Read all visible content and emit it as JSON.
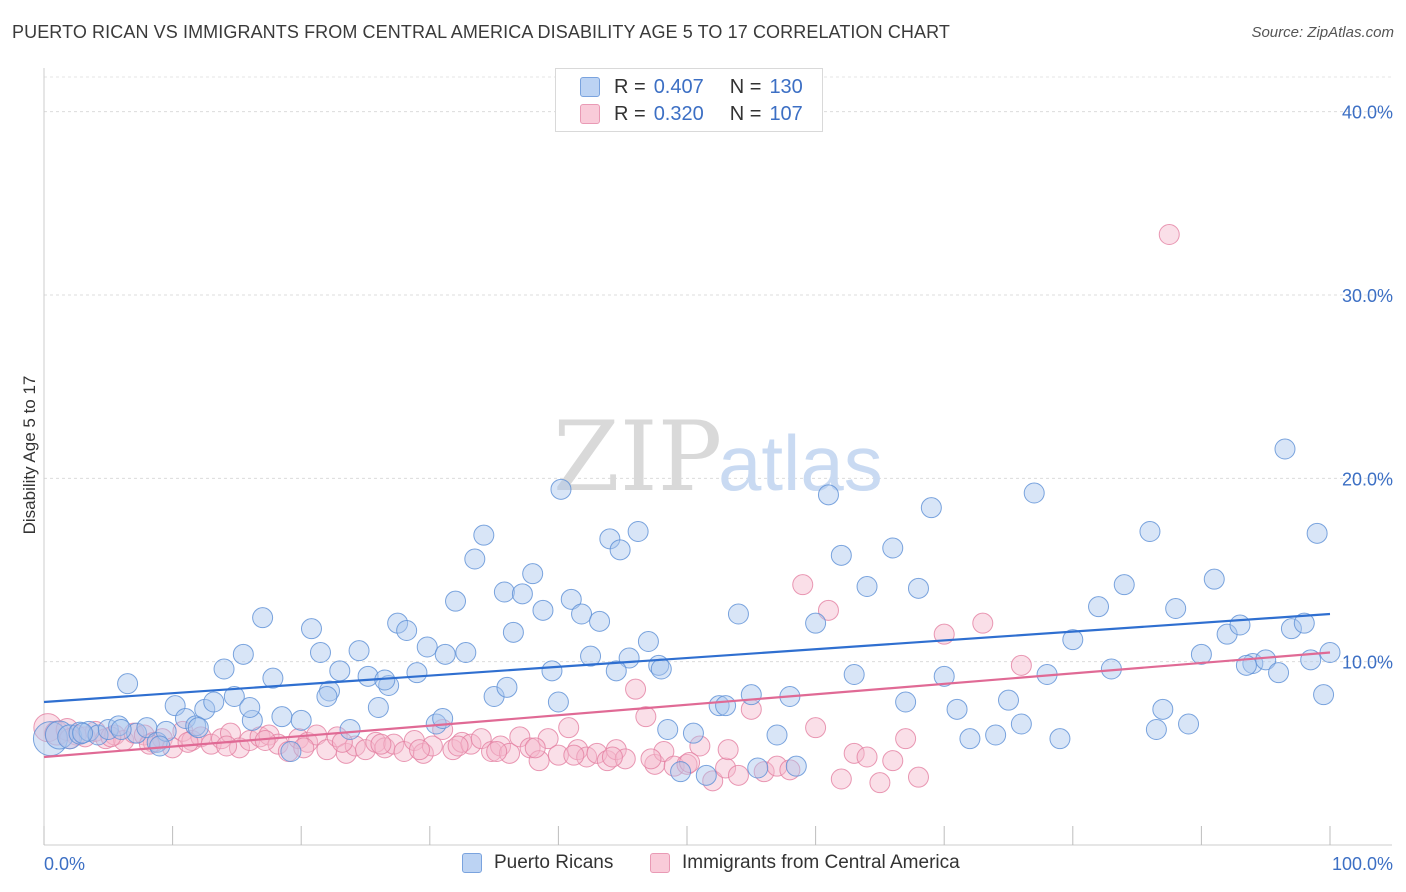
{
  "header": {
    "title": "PUERTO RICAN VS IMMIGRANTS FROM CENTRAL AMERICA DISABILITY AGE 5 TO 17 CORRELATION CHART",
    "source": "Source: ZipAtlas.com"
  },
  "watermark": {
    "zip": "ZIP",
    "atlas": "atlas"
  },
  "legend_top": {
    "rows": [
      {
        "r_label": "R =",
        "r_value": "0.407",
        "n_label": "N =",
        "n_value": "130"
      },
      {
        "r_label": "R =",
        "r_value": "0.320",
        "n_label": "N =",
        "n_value": "107"
      }
    ]
  },
  "chart_data": {
    "type": "scatter",
    "title": "PUERTO RICAN VS IMMIGRANTS FROM CENTRAL AMERICA DISABILITY AGE 5 TO 17 CORRELATION CHART",
    "xlabel": "",
    "ylabel": "Disability Age 5 to 17",
    "xlim": [
      0,
      100
    ],
    "ylim": [
      0,
      42
    ],
    "x_tick_labels": [
      "0.0%",
      "100.0%"
    ],
    "y_ticks": [
      10,
      20,
      30,
      40
    ],
    "y_tick_labels": [
      "10.0%",
      "20.0%",
      "30.0%",
      "40.0%"
    ],
    "grid": "horizontal dashed",
    "legend_position": "bottom-center",
    "colors": {
      "blue": "#5b8fd6",
      "blue_fill": "#a9c6ee",
      "pink": "#e47fa1",
      "pink_fill": "#f5b9cc",
      "blue_line": "#2f6fd0",
      "pink_line": "#e06a95",
      "tick_text": "#3c6fc4"
    },
    "series": [
      {
        "name": "Puerto Ricans",
        "color": "#5b8fd6",
        "trend": {
          "x": [
            0,
            100
          ],
          "y": [
            7.8,
            12.6
          ]
        },
        "x": [
          0.5,
          1.2,
          2.0,
          2.8,
          3.5,
          4.2,
          5.0,
          5.8,
          6.5,
          7.2,
          8.0,
          8.8,
          9.5,
          10.2,
          11.0,
          11.8,
          12.5,
          13.2,
          14.0,
          14.8,
          15.5,
          16.2,
          17.0,
          17.8,
          18.5,
          19.2,
          20.0,
          20.8,
          21.5,
          22.2,
          23.0,
          23.8,
          24.5,
          25.2,
          26.0,
          26.8,
          27.5,
          28.2,
          29.0,
          29.8,
          30.5,
          31.2,
          32.0,
          32.8,
          33.5,
          34.2,
          35.0,
          35.8,
          36.5,
          37.2,
          38.0,
          38.8,
          39.5,
          40.2,
          41.0,
          41.8,
          42.5,
          43.2,
          44.0,
          44.8,
          45.5,
          46.2,
          47.0,
          47.8,
          48.5,
          49.5,
          50.5,
          51.5,
          52.5,
          54.0,
          55.5,
          57.0,
          58.5,
          60.0,
          62.0,
          64.0,
          66.0,
          68.0,
          70.0,
          72.0,
          74.0,
          76.0,
          78.0,
          80.0,
          82.0,
          84.0,
          86.0,
          88.0,
          90.0,
          91.0,
          92.0,
          93.0,
          94.0,
          95.0,
          96.0,
          97.0,
          98.0,
          99.0,
          99.5,
          100.0,
          3.0,
          6.0,
          9.0,
          12.0,
          16.0,
          22.0,
          26.5,
          31.0,
          36.0,
          40.0,
          44.5,
          48.0,
          53.0,
          58.0,
          63.0,
          67.0,
          71.0,
          75.0,
          79.0,
          83.0,
          87.0,
          89.0,
          93.5,
          96.5,
          98.5,
          86.5,
          77.0,
          69.0,
          61.0,
          55.0
        ],
        "y": [
          5.8,
          6.0,
          5.9,
          6.1,
          6.2,
          6.0,
          6.3,
          6.5,
          8.8,
          6.1,
          6.4,
          5.6,
          6.2,
          7.6,
          6.9,
          6.5,
          7.4,
          7.8,
          9.6,
          8.1,
          10.4,
          6.8,
          12.4,
          9.1,
          7.0,
          5.1,
          6.8,
          11.8,
          10.5,
          8.4,
          9.5,
          6.3,
          10.6,
          9.2,
          7.5,
          8.7,
          12.1,
          11.7,
          9.4,
          10.8,
          6.6,
          10.4,
          13.3,
          10.5,
          15.6,
          16.9,
          8.1,
          13.8,
          11.6,
          13.7,
          14.8,
          12.8,
          9.5,
          19.4,
          13.4,
          12.6,
          10.3,
          12.2,
          16.7,
          16.1,
          10.2,
          17.1,
          11.1,
          9.8,
          6.3,
          4.0,
          6.1,
          3.8,
          7.6,
          12.6,
          4.2,
          6.0,
          4.3,
          12.1,
          15.8,
          14.1,
          16.2,
          14.0,
          9.2,
          5.8,
          6.0,
          6.6,
          9.3,
          11.2,
          13.0,
          14.2,
          17.1,
          12.9,
          10.4,
          14.5,
          11.5,
          12.0,
          9.9,
          10.1,
          9.4,
          11.8,
          12.1,
          17.0,
          8.2,
          10.5,
          6.1,
          6.3,
          5.4,
          6.4,
          7.5,
          8.1,
          9.0,
          6.9,
          8.6,
          7.8,
          9.5,
          9.6,
          7.6,
          8.1,
          9.3,
          7.8,
          7.4,
          7.9,
          5.8,
          9.6,
          7.4,
          6.6,
          9.8,
          21.6,
          10.1,
          6.3,
          19.2,
          18.4,
          19.1,
          8.2
        ],
        "sizes": [
          34,
          28,
          24,
          22,
          20,
          20,
          20,
          20,
          20,
          20,
          20,
          20,
          20,
          20,
          20,
          20,
          20,
          20,
          20,
          20,
          20,
          20,
          20,
          20,
          20,
          20,
          20,
          20,
          20,
          20,
          20,
          20,
          20,
          20,
          20,
          20,
          20,
          20,
          20,
          20,
          20,
          20,
          20,
          20,
          20,
          20,
          20,
          20,
          20,
          20,
          20,
          20,
          20,
          20,
          20,
          20,
          20,
          20,
          20,
          20,
          20,
          20,
          20,
          20,
          20,
          20,
          20,
          20,
          20,
          20,
          20,
          20,
          20,
          20,
          20,
          20,
          20,
          20,
          20,
          20,
          20,
          20,
          20,
          20,
          20,
          20,
          20,
          20,
          20,
          20,
          20,
          20,
          20,
          20,
          20,
          20,
          20,
          20,
          20,
          20,
          20,
          20,
          20,
          20,
          20,
          20,
          20,
          20,
          20,
          20,
          20,
          20,
          20,
          20,
          20,
          20,
          20,
          20,
          20,
          20,
          20,
          20,
          20,
          20,
          20,
          20,
          20,
          20,
          20,
          20
        ]
      },
      {
        "name": "Immigrants from Central America",
        "color": "#e47fa1",
        "trend": {
          "x": [
            0,
            100
          ],
          "y": [
            4.8,
            10.5
          ]
        },
        "x": [
          0.3,
          1.0,
          1.8,
          2.5,
          3.2,
          4.0,
          4.8,
          5.5,
          6.2,
          7.0,
          7.8,
          8.5,
          9.2,
          10.0,
          10.8,
          11.5,
          12.2,
          13.0,
          13.8,
          14.5,
          15.2,
          16.0,
          16.8,
          17.5,
          18.2,
          19.0,
          19.8,
          20.5,
          21.2,
          22.0,
          22.8,
          23.5,
          24.2,
          25.0,
          25.8,
          26.5,
          27.2,
          28.0,
          28.8,
          29.5,
          30.2,
          31.0,
          31.8,
          32.5,
          33.2,
          34.0,
          34.8,
          35.5,
          36.2,
          37.0,
          37.8,
          38.5,
          39.2,
          40.0,
          40.8,
          41.5,
          42.2,
          43.0,
          43.8,
          44.5,
          45.2,
          46.0,
          46.8,
          47.5,
          48.2,
          49.0,
          50.0,
          51.0,
          52.0,
          53.0,
          54.0,
          55.0,
          56.0,
          57.0,
          58.0,
          59.0,
          60.0,
          61.0,
          62.0,
          63.0,
          64.0,
          65.0,
          66.0,
          67.0,
          68.0,
          70.0,
          73.0,
          76.0,
          87.5,
          2.0,
          5.2,
          8.2,
          11.2,
          14.2,
          17.2,
          20.2,
          23.2,
          26.2,
          29.2,
          32.2,
          35.2,
          38.2,
          41.2,
          44.2,
          47.2,
          50.2,
          53.2
        ],
        "y": [
          6.4,
          6.1,
          6.3,
          6.0,
          5.9,
          6.2,
          5.8,
          6.0,
          5.7,
          6.1,
          6.0,
          5.6,
          5.8,
          5.3,
          6.2,
          5.7,
          5.9,
          5.5,
          5.8,
          6.1,
          5.3,
          5.7,
          5.9,
          6.0,
          5.5,
          5.1,
          5.8,
          5.6,
          6.0,
          5.2,
          5.9,
          5.0,
          5.4,
          5.2,
          5.6,
          5.3,
          5.5,
          5.1,
          5.7,
          5.0,
          5.4,
          6.3,
          5.2,
          5.6,
          5.5,
          5.8,
          5.1,
          5.4,
          5.0,
          5.9,
          5.3,
          4.6,
          5.8,
          4.9,
          6.4,
          5.2,
          4.8,
          5.0,
          4.6,
          5.2,
          4.7,
          8.5,
          7.0,
          4.4,
          5.1,
          4.3,
          4.4,
          5.4,
          3.5,
          4.2,
          3.8,
          7.4,
          4.0,
          4.3,
          4.1,
          14.2,
          6.4,
          12.8,
          3.6,
          5.0,
          4.8,
          3.4,
          4.6,
          5.8,
          3.7,
          11.5,
          12.1,
          9.8,
          33.3,
          5.8,
          5.9,
          5.5,
          5.6,
          5.4,
          5.7,
          5.3,
          5.6,
          5.5,
          5.2,
          5.4,
          5.1,
          5.3,
          4.9,
          4.8,
          4.7,
          4.5,
          5.2
        ],
        "sizes": [
          28,
          24,
          22,
          20,
          20,
          20,
          20,
          20,
          20,
          20,
          20,
          20,
          20,
          20,
          20,
          20,
          20,
          20,
          20,
          20,
          20,
          20,
          20,
          20,
          20,
          20,
          20,
          20,
          20,
          20,
          20,
          20,
          20,
          20,
          20,
          20,
          20,
          20,
          20,
          20,
          20,
          20,
          20,
          20,
          20,
          20,
          20,
          20,
          20,
          20,
          20,
          20,
          20,
          20,
          20,
          20,
          20,
          20,
          20,
          20,
          20,
          20,
          20,
          20,
          20,
          20,
          20,
          20,
          20,
          20,
          20,
          20,
          20,
          20,
          20,
          20,
          20,
          20,
          20,
          20,
          20,
          20,
          20,
          20,
          20,
          20,
          20,
          20,
          20,
          20,
          20,
          20,
          20,
          20,
          20,
          20,
          20,
          20,
          20,
          20,
          20,
          20,
          20,
          20,
          20,
          20,
          20
        ]
      }
    ]
  }
}
